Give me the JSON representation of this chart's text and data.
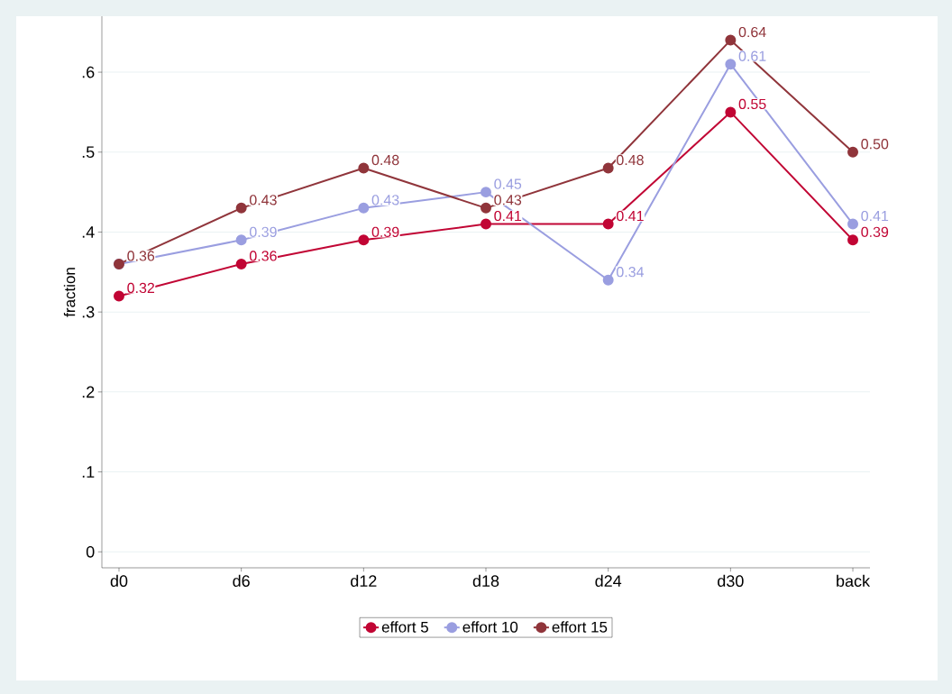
{
  "chart_data": {
    "type": "line",
    "ylabel": "fraction",
    "categories": [
      "d0",
      "d6",
      "d12",
      "d18",
      "d24",
      "d30",
      "back"
    ],
    "series": [
      {
        "name": "effort 5",
        "color": "#c10534",
        "values": [
          0.32,
          0.36,
          0.39,
          0.41,
          0.41,
          0.55,
          0.39
        ],
        "value_labels": [
          "0.32",
          "0.36",
          "0.39",
          "0.41",
          "0.41",
          "0.55",
          "0.39"
        ]
      },
      {
        "name": "effort 10",
        "color": "#9a9ee0",
        "values": [
          0.36,
          0.39,
          0.43,
          0.45,
          0.34,
          0.61,
          0.41
        ],
        "value_labels": [
          null,
          "0.39",
          "0.43",
          "0.45",
          "0.34",
          "0.61",
          "0.41"
        ]
      },
      {
        "name": "effort 15",
        "color": "#90353b",
        "values": [
          0.36,
          0.43,
          0.48,
          0.43,
          0.48,
          0.64,
          0.5
        ],
        "value_labels": [
          "0.36",
          "0.43",
          "0.48",
          "0.43",
          "0.48",
          "0.64",
          "0.50"
        ]
      }
    ],
    "ylim": [
      -0.02,
      0.67
    ],
    "yticks": [
      0,
      {
        "value": 0.1,
        "label": ".1"
      },
      {
        "value": 0.2,
        "label": ".2"
      },
      {
        "value": 0.3,
        "label": ".3"
      },
      {
        "value": 0.4,
        "label": ".4"
      },
      {
        "value": 0.5,
        "label": ".5"
      },
      {
        "value": 0.6,
        "label": ".6"
      }
    ],
    "grid": "y",
    "legend": "bottom",
    "marker": "circle",
    "line_style": "solid"
  }
}
